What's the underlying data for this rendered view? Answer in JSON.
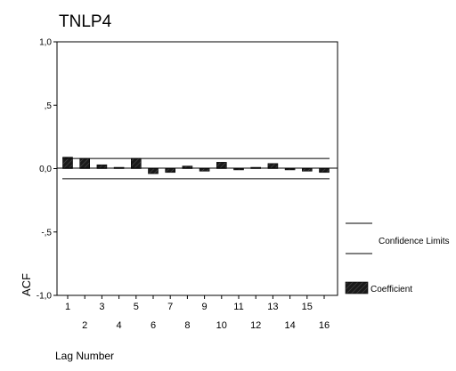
{
  "chart_data": {
    "type": "bar",
    "title": "TNLP4",
    "xlabel": "Lag Number",
    "ylabel": "ACF",
    "ylim": [
      -1.0,
      1.0
    ],
    "y_ticks": [
      "1,0",
      ",5",
      "0,0",
      "-,5",
      "-1,0"
    ],
    "y_tick_values": [
      1.0,
      0.5,
      0.0,
      -0.5,
      -1.0
    ],
    "categories": [
      "1",
      "2",
      "3",
      "4",
      "5",
      "6",
      "7",
      "8",
      "9",
      "10",
      "11",
      "12",
      "13",
      "14",
      "15",
      "16"
    ],
    "series": [
      {
        "name": "Coefficient",
        "values": [
          0.09,
          0.08,
          0.03,
          0.01,
          0.08,
          -0.04,
          -0.03,
          0.02,
          -0.02,
          0.05,
          -0.01,
          0.01,
          0.04,
          -0.01,
          -0.02,
          -0.03
        ]
      }
    ],
    "confidence_limits": {
      "name": "Confidence Limits",
      "upper": 0.08,
      "lower": -0.08
    },
    "legend": [
      {
        "label": "Confidence Limits",
        "marker": "line"
      },
      {
        "label": "Coefficient",
        "marker": "hatched-box"
      }
    ],
    "legend_position": "right",
    "grid": false,
    "colors": {
      "bar_fill": "#1a1a1a",
      "hatch": "#4d4d4d",
      "axis": "#000000",
      "line": "#000000"
    }
  }
}
